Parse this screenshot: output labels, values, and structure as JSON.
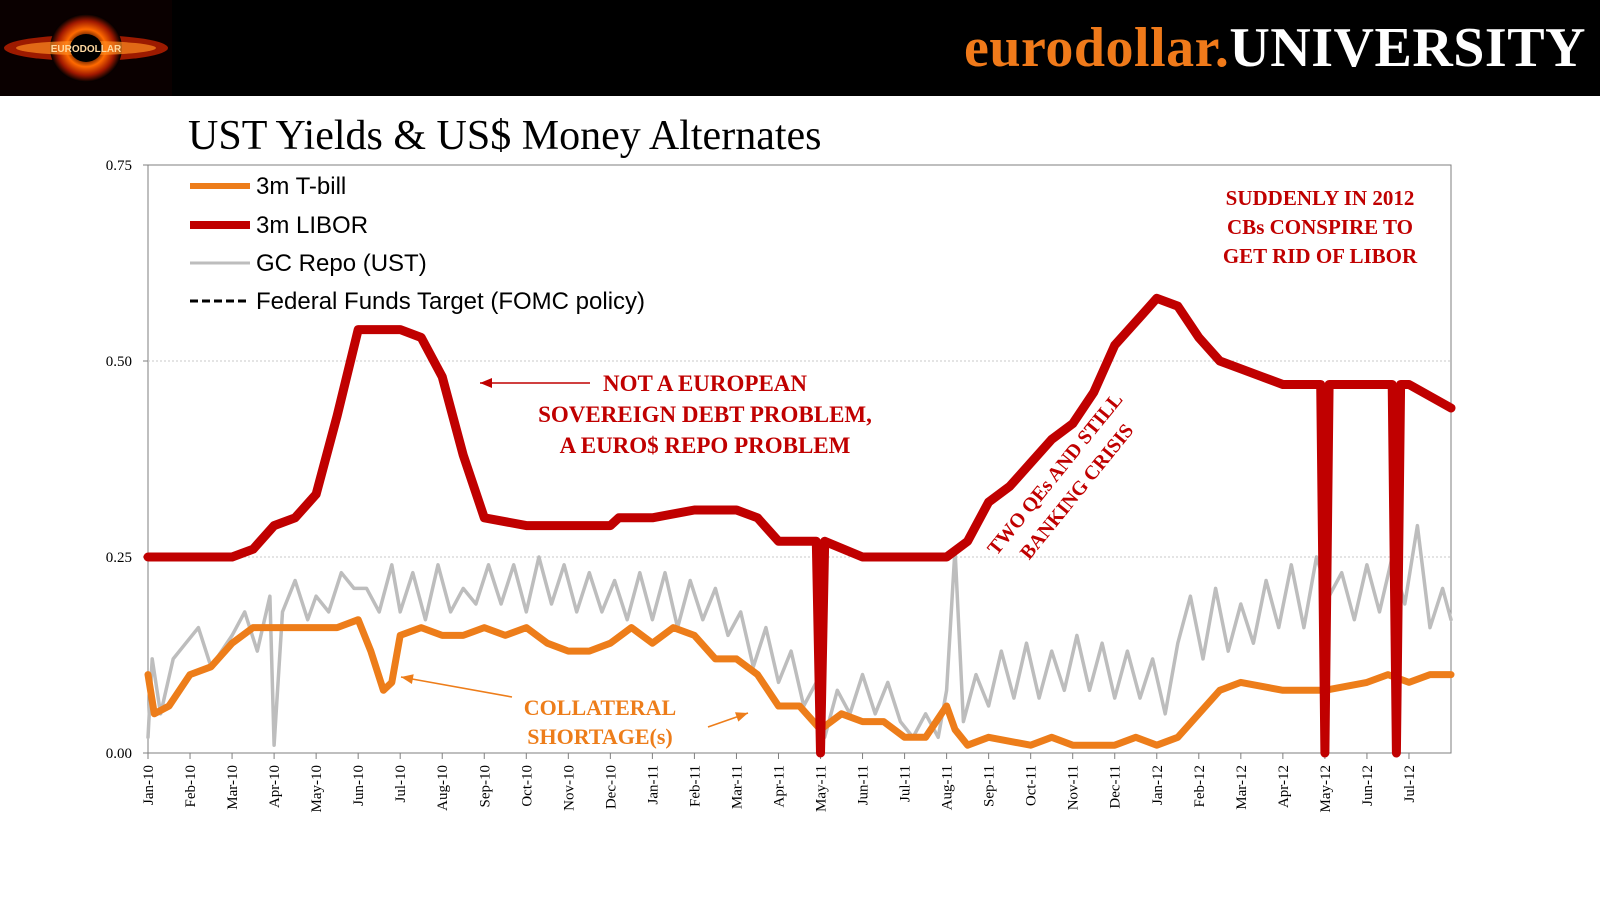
{
  "header": {
    "brand_part1": "eurodollar.",
    "brand_part2": "UNIVERSITY",
    "logo_text": "EURODOLLAR"
  },
  "colors": {
    "tbill": "#ed7d1a",
    "libor": "#c00000",
    "repo": "#bdbdbd",
    "fedfunds": "#000000",
    "annotation_red": "#c00000",
    "annotation_orange": "#ed7d1a",
    "brand_orange": "#f07a1a"
  },
  "chart_data": {
    "type": "line",
    "title": "UST Yields & US$ Money Alternates",
    "xlabel": "",
    "ylabel": "",
    "ylim": [
      0,
      0.75
    ],
    "yticks": [
      "0.00",
      "0.25",
      "0.50",
      "0.75"
    ],
    "x_ticks": [
      "Jan-10",
      "Feb-10",
      "Mar-10",
      "Apr-10",
      "May-10",
      "Jun-10",
      "Jul-10",
      "Aug-10",
      "Sep-10",
      "Oct-10",
      "Nov-10",
      "Dec-10",
      "Jan-11",
      "Feb-11",
      "Mar-11",
      "Apr-11",
      "May-11",
      "Jun-11",
      "Jul-11",
      "Aug-11",
      "Sep-11",
      "Oct-11",
      "Nov-11",
      "Dec-11",
      "Jan-12",
      "Feb-12",
      "Mar-12",
      "Apr-12",
      "May-12",
      "Jun-12",
      "Jul-12"
    ],
    "x_range_months": [
      0,
      31
    ],
    "gridlines": true,
    "legend_position": "top-left",
    "series": [
      {
        "name": "3m T-bill",
        "style": "solid",
        "points": [
          [
            0,
            0.1
          ],
          [
            0.15,
            0.05
          ],
          [
            0.5,
            0.06
          ],
          [
            1,
            0.1
          ],
          [
            1.5,
            0.11
          ],
          [
            2,
            0.14
          ],
          [
            2.5,
            0.16
          ],
          [
            3,
            0.16
          ],
          [
            3.5,
            0.16
          ],
          [
            4,
            0.16
          ],
          [
            4.5,
            0.16
          ],
          [
            5,
            0.17
          ],
          [
            5.3,
            0.13
          ],
          [
            5.6,
            0.08
          ],
          [
            5.8,
            0.09
          ],
          [
            6,
            0.15
          ],
          [
            6.5,
            0.16
          ],
          [
            7,
            0.15
          ],
          [
            7.5,
            0.15
          ],
          [
            8,
            0.16
          ],
          [
            8.5,
            0.15
          ],
          [
            9,
            0.16
          ],
          [
            9.5,
            0.14
          ],
          [
            10,
            0.13
          ],
          [
            10.5,
            0.13
          ],
          [
            11,
            0.14
          ],
          [
            11.5,
            0.16
          ],
          [
            12,
            0.14
          ],
          [
            12.5,
            0.16
          ],
          [
            13,
            0.15
          ],
          [
            13.5,
            0.12
          ],
          [
            14,
            0.12
          ],
          [
            14.5,
            0.1
          ],
          [
            15,
            0.06
          ],
          [
            15.5,
            0.06
          ],
          [
            16,
            0.03
          ],
          [
            16.5,
            0.05
          ],
          [
            17,
            0.04
          ],
          [
            17.5,
            0.04
          ],
          [
            18,
            0.02
          ],
          [
            18.5,
            0.02
          ],
          [
            19,
            0.06
          ],
          [
            19.2,
            0.03
          ],
          [
            19.5,
            0.01
          ],
          [
            20,
            0.02
          ],
          [
            21,
            0.01
          ],
          [
            21.5,
            0.02
          ],
          [
            22,
            0.01
          ],
          [
            23,
            0.01
          ],
          [
            23.5,
            0.02
          ],
          [
            24,
            0.01
          ],
          [
            24.5,
            0.02
          ],
          [
            25,
            0.05
          ],
          [
            25.5,
            0.08
          ],
          [
            26,
            0.09
          ],
          [
            27,
            0.08
          ],
          [
            28,
            0.08
          ],
          [
            29,
            0.09
          ],
          [
            29.5,
            0.1
          ],
          [
            30,
            0.09
          ],
          [
            30.5,
            0.1
          ],
          [
            31,
            0.1
          ]
        ]
      },
      {
        "name": "3m LIBOR",
        "style": "solid",
        "points": [
          [
            0,
            0.25
          ],
          [
            1,
            0.25
          ],
          [
            2,
            0.25
          ],
          [
            2.5,
            0.26
          ],
          [
            3,
            0.29
          ],
          [
            3.5,
            0.3
          ],
          [
            4,
            0.33
          ],
          [
            4.5,
            0.43
          ],
          [
            5,
            0.54
          ],
          [
            6,
            0.54
          ],
          [
            6.5,
            0.53
          ],
          [
            7,
            0.48
          ],
          [
            7.5,
            0.38
          ],
          [
            8,
            0.3
          ],
          [
            9,
            0.29
          ],
          [
            10,
            0.29
          ],
          [
            10.5,
            0.29
          ],
          [
            11,
            0.29
          ],
          [
            11.2,
            0.3
          ],
          [
            12,
            0.3
          ],
          [
            13,
            0.31
          ],
          [
            14,
            0.31
          ],
          [
            14.5,
            0.3
          ],
          [
            15,
            0.27
          ],
          [
            15.9,
            0.27
          ],
          [
            16,
            0.0
          ],
          [
            16.1,
            0.27
          ],
          [
            17,
            0.25
          ],
          [
            18,
            0.25
          ],
          [
            19,
            0.25
          ],
          [
            19.5,
            0.27
          ],
          [
            20,
            0.32
          ],
          [
            20.5,
            0.34
          ],
          [
            21,
            0.37
          ],
          [
            21.5,
            0.4
          ],
          [
            22,
            0.42
          ],
          [
            22.5,
            0.46
          ],
          [
            23,
            0.52
          ],
          [
            23.5,
            0.55
          ],
          [
            24,
            0.58
          ],
          [
            24.5,
            0.57
          ],
          [
            25,
            0.53
          ],
          [
            25.5,
            0.5
          ],
          [
            26,
            0.49
          ],
          [
            26.5,
            0.48
          ],
          [
            27,
            0.47
          ],
          [
            27.9,
            0.47
          ],
          [
            28,
            0.0
          ],
          [
            28.1,
            0.47
          ],
          [
            29,
            0.47
          ],
          [
            29.6,
            0.47
          ],
          [
            29.7,
            0.0
          ],
          [
            29.8,
            0.47
          ],
          [
            30,
            0.47
          ],
          [
            31,
            0.44
          ]
        ]
      },
      {
        "name": "GC Repo (UST)",
        "style": "solid",
        "points": [
          [
            0,
            0.02
          ],
          [
            0.1,
            0.12
          ],
          [
            0.3,
            0.05
          ],
          [
            0.6,
            0.12
          ],
          [
            0.9,
            0.14
          ],
          [
            1.2,
            0.16
          ],
          [
            1.5,
            0.11
          ],
          [
            2,
            0.15
          ],
          [
            2.3,
            0.18
          ],
          [
            2.6,
            0.13
          ],
          [
            2.9,
            0.2
          ],
          [
            3.0,
            0.01
          ],
          [
            3.2,
            0.18
          ],
          [
            3.5,
            0.22
          ],
          [
            3.8,
            0.17
          ],
          [
            4,
            0.2
          ],
          [
            4.3,
            0.18
          ],
          [
            4.6,
            0.23
          ],
          [
            4.9,
            0.21
          ],
          [
            5.2,
            0.21
          ],
          [
            5.5,
            0.18
          ],
          [
            5.8,
            0.24
          ],
          [
            6,
            0.18
          ],
          [
            6.3,
            0.23
          ],
          [
            6.6,
            0.17
          ],
          [
            6.9,
            0.24
          ],
          [
            7.2,
            0.18
          ],
          [
            7.5,
            0.21
          ],
          [
            7.8,
            0.19
          ],
          [
            8.1,
            0.24
          ],
          [
            8.4,
            0.19
          ],
          [
            8.7,
            0.24
          ],
          [
            9,
            0.18
          ],
          [
            9.3,
            0.25
          ],
          [
            9.6,
            0.19
          ],
          [
            9.9,
            0.24
          ],
          [
            10.2,
            0.18
          ],
          [
            10.5,
            0.23
          ],
          [
            10.8,
            0.18
          ],
          [
            11.1,
            0.22
          ],
          [
            11.4,
            0.17
          ],
          [
            11.7,
            0.23
          ],
          [
            12,
            0.17
          ],
          [
            12.3,
            0.23
          ],
          [
            12.6,
            0.16
          ],
          [
            12.9,
            0.22
          ],
          [
            13.2,
            0.17
          ],
          [
            13.5,
            0.21
          ],
          [
            13.8,
            0.15
          ],
          [
            14.1,
            0.18
          ],
          [
            14.4,
            0.11
          ],
          [
            14.7,
            0.16
          ],
          [
            15,
            0.09
          ],
          [
            15.3,
            0.13
          ],
          [
            15.6,
            0.06
          ],
          [
            15.9,
            0.09
          ],
          [
            16.1,
            0.02
          ],
          [
            16.4,
            0.08
          ],
          [
            16.7,
            0.05
          ],
          [
            17,
            0.1
          ],
          [
            17.3,
            0.05
          ],
          [
            17.6,
            0.09
          ],
          [
            17.9,
            0.04
          ],
          [
            18.2,
            0.02
          ],
          [
            18.5,
            0.05
          ],
          [
            18.8,
            0.02
          ],
          [
            19,
            0.08
          ],
          [
            19.2,
            0.26
          ],
          [
            19.4,
            0.04
          ],
          [
            19.7,
            0.1
          ],
          [
            20,
            0.06
          ],
          [
            20.3,
            0.13
          ],
          [
            20.6,
            0.07
          ],
          [
            20.9,
            0.14
          ],
          [
            21.2,
            0.07
          ],
          [
            21.5,
            0.13
          ],
          [
            21.8,
            0.08
          ],
          [
            22.1,
            0.15
          ],
          [
            22.4,
            0.08
          ],
          [
            22.7,
            0.14
          ],
          [
            23,
            0.07
          ],
          [
            23.3,
            0.13
          ],
          [
            23.6,
            0.07
          ],
          [
            23.9,
            0.12
          ],
          [
            24.2,
            0.05
          ],
          [
            24.5,
            0.14
          ],
          [
            24.8,
            0.2
          ],
          [
            25.1,
            0.12
          ],
          [
            25.4,
            0.21
          ],
          [
            25.7,
            0.13
          ],
          [
            26,
            0.19
          ],
          [
            26.3,
            0.14
          ],
          [
            26.6,
            0.22
          ],
          [
            26.9,
            0.16
          ],
          [
            27.2,
            0.24
          ],
          [
            27.5,
            0.16
          ],
          [
            27.8,
            0.25
          ],
          [
            28.1,
            0.2
          ],
          [
            28.4,
            0.23
          ],
          [
            28.7,
            0.17
          ],
          [
            29,
            0.24
          ],
          [
            29.3,
            0.18
          ],
          [
            29.6,
            0.25
          ],
          [
            29.9,
            0.19
          ],
          [
            30.2,
            0.29
          ],
          [
            30.5,
            0.16
          ],
          [
            30.8,
            0.21
          ],
          [
            31,
            0.17
          ]
        ]
      },
      {
        "name": "Federal Funds Target (FOMC policy)",
        "style": "dashed",
        "points": []
      }
    ],
    "annotations": [
      {
        "id": "suddenly",
        "color": "red",
        "lines": [
          "SUDDENLY IN 2012",
          "CBs CONSPIRE TO",
          "GET RID OF LIBOR"
        ]
      },
      {
        "id": "not-european",
        "color": "red",
        "lines": [
          "NOT A EUROPEAN",
          "SOVEREIGN DEBT PROBLEM,",
          "A EURO$ REPO PROBLEM"
        ]
      },
      {
        "id": "two-qes",
        "color": "red",
        "lines": [
          "TWO QEs AND STILL",
          "BANKING CRISIS"
        ]
      },
      {
        "id": "collateral",
        "color": "orange",
        "lines": [
          "COLLATERAL",
          "SHORTAGE(s)"
        ]
      }
    ]
  }
}
